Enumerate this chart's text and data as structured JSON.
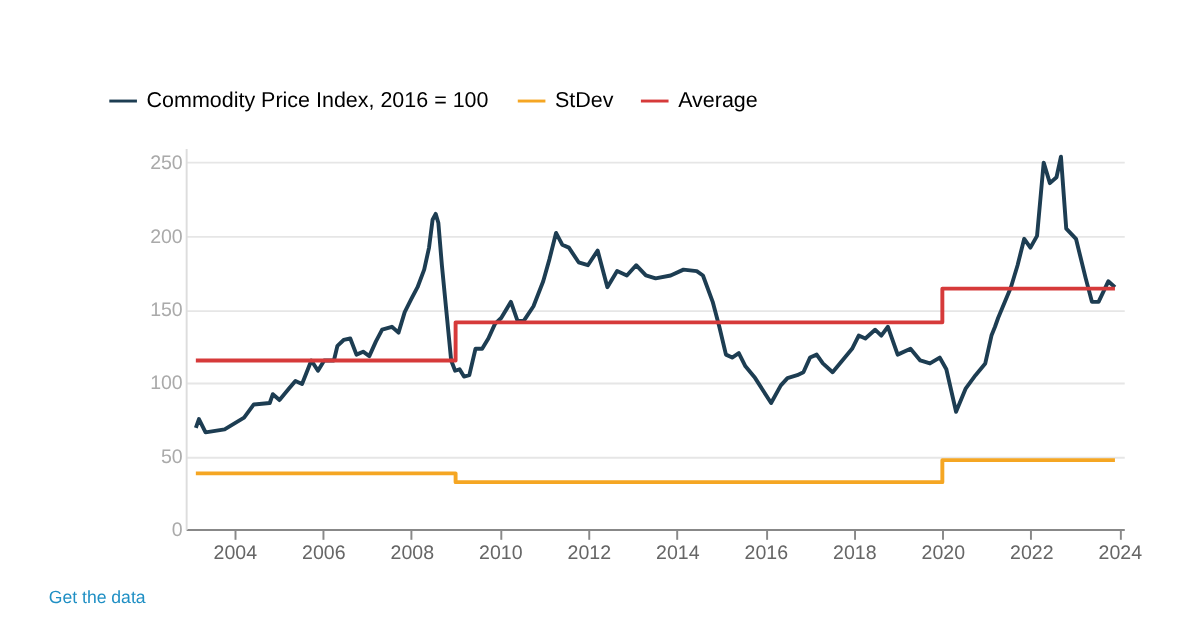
{
  "chart_data": {
    "type": "line",
    "xlim": [
      2002.9,
      2024.1
    ],
    "xticks": [
      2004,
      2006,
      2008,
      2010,
      2012,
      2014,
      2016,
      2018,
      2020,
      2022,
      2024
    ],
    "ylim": [
      0,
      260
    ],
    "yticks": [
      0,
      50,
      100,
      150,
      200,
      250
    ],
    "grid": "y",
    "legend": "top left",
    "annotations": [
      "Get the data"
    ],
    "series": [
      {
        "name": "Commodity Price Index, 2016 = 100",
        "color": "#1d3d52",
        "type": "line",
        "x": [
          2003.13,
          2003.2,
          2003.35,
          2003.78,
          2004.22,
          2004.44,
          2004.8,
          2004.87,
          2005.02,
          2005.24,
          2005.38,
          2005.53,
          2005.74,
          2005.89,
          2006.03,
          2006.25,
          2006.33,
          2006.47,
          2006.62,
          2006.76,
          2006.91,
          2007.05,
          2007.2,
          2007.34,
          2007.56,
          2007.71,
          2007.85,
          2008.0,
          2008.14,
          2008.29,
          2008.4,
          2008.48,
          2008.55,
          2008.61,
          2008.69,
          2008.8,
          2008.9,
          2008.99,
          2009.09,
          2009.19,
          2009.31,
          2009.45,
          2009.6,
          2009.74,
          2009.89,
          2010.03,
          2010.25,
          2010.4,
          2010.54,
          2010.76,
          2010.98,
          2011.12,
          2011.27,
          2011.41,
          2011.56,
          2011.78,
          2011.99,
          2012.21,
          2012.43,
          2012.65,
          2012.87,
          2013.08,
          2013.3,
          2013.52,
          2013.86,
          2014.15,
          2014.45,
          2014.59,
          2014.81,
          2014.96,
          2015.11,
          2015.25,
          2015.4,
          2015.55,
          2015.77,
          2016.13,
          2016.35,
          2016.5,
          2016.72,
          2016.86,
          2017.01,
          2017.16,
          2017.3,
          2017.52,
          2017.74,
          2017.96,
          2018.11,
          2018.26,
          2018.48,
          2018.62,
          2018.77,
          2018.99,
          2019.28,
          2019.5,
          2019.72,
          2019.94,
          2020.09,
          2020.31,
          2020.53,
          2020.75,
          2020.97,
          2021.11,
          2021.19,
          2021.26,
          2021.55,
          2021.7,
          2021.85,
          2021.99,
          2022.14,
          2022.29,
          2022.43,
          2022.58,
          2022.68,
          2022.8,
          2023.02,
          2023.24,
          2023.38,
          2023.53,
          2023.75,
          2023.9
        ],
        "values": [
          69,
          75,
          66,
          68,
          76,
          85,
          86,
          92,
          88,
          96,
          101,
          99,
          115,
          108,
          115,
          115,
          125,
          129,
          130,
          119,
          121,
          118,
          128,
          136,
          138,
          134,
          148,
          157,
          165,
          177,
          192,
          211,
          215,
          209,
          180,
          146,
          115,
          108,
          109,
          104,
          105,
          123,
          123,
          130,
          140,
          144,
          155,
          142,
          142,
          152,
          169,
          184,
          202,
          194,
          192,
          182,
          180,
          190,
          165,
          176,
          173,
          180,
          173,
          171,
          173,
          177,
          176,
          173,
          155,
          138,
          119,
          117,
          120,
          111,
          103,
          86,
          98,
          103,
          105,
          107,
          117,
          119,
          113,
          107,
          115,
          123,
          132,
          130,
          136,
          132,
          138,
          119,
          123,
          115,
          113,
          117,
          109,
          80,
          96,
          105,
          113,
          132,
          138,
          144,
          165,
          180,
          198,
          192,
          200,
          250,
          236,
          240,
          254,
          205,
          198,
          171,
          155,
          155,
          169,
          165
        ]
      },
      {
        "name": "StDev",
        "color": "#f5a623",
        "type": "step",
        "x": [
          2003.13,
          2009.0,
          2020.0,
          2023.9
        ],
        "values": [
          38,
          32,
          47,
          47
        ]
      },
      {
        "name": "Average",
        "color": "#d63a3a",
        "type": "step",
        "x": [
          2003.13,
          2009.0,
          2020.0,
          2023.9
        ],
        "values": [
          115,
          141,
          164,
          164
        ]
      }
    ]
  }
}
